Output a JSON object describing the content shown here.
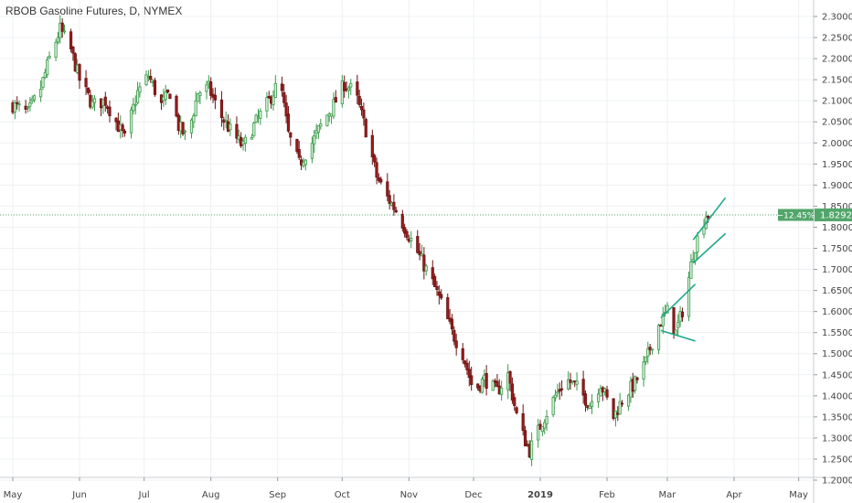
{
  "header": {
    "symbol_title": "RBOB Gasoline Futures, D, NYMEX"
  },
  "colors": {
    "up_body": "#d7f0da",
    "up_stroke": "#3a9a4a",
    "down_body": "#9b1c1c",
    "down_stroke": "#6b1212",
    "grid": "#eef0f3",
    "last_price_bg": "#53a66b",
    "trendline": "#1ea88b"
  },
  "chart_data": {
    "type": "candlestick",
    "title": "RBOB Gasoline Futures, D, NYMEX",
    "grid": true,
    "y_scale": "linear",
    "ylim": [
      1.19,
      2.32
    ],
    "y_ticks": [
      "2.3000",
      "2.2500",
      "2.2000",
      "2.1500",
      "2.1000",
      "2.0500",
      "2.0000",
      "1.9500",
      "1.9000",
      "1.8500",
      "1.8000",
      "1.7500",
      "1.7000",
      "1.6500",
      "1.6000",
      "1.5500",
      "1.5000",
      "1.4500",
      "1.4000",
      "1.3500",
      "1.3000",
      "1.2500",
      "1.2000"
    ],
    "x_range": [
      "2018-05-01",
      "2019-05-02"
    ],
    "x_ticks": [
      {
        "label": "May",
        "date": "2018-05-01"
      },
      {
        "label": "Jun",
        "date": "2018-06-01"
      },
      {
        "label": "Jul",
        "date": "2018-07-01"
      },
      {
        "label": "Aug",
        "date": "2018-08-01"
      },
      {
        "label": "Sep",
        "date": "2018-09-01"
      },
      {
        "label": "Oct",
        "date": "2018-10-01"
      },
      {
        "label": "Nov",
        "date": "2018-11-01"
      },
      {
        "label": "Dec",
        "date": "2018-12-01"
      },
      {
        "label": "2019",
        "date": "2019-01-01",
        "bold": true
      },
      {
        "label": "Feb",
        "date": "2019-02-01"
      },
      {
        "label": "Mar",
        "date": "2019-03-01"
      },
      {
        "label": "Apr",
        "date": "2019-04-01"
      },
      {
        "label": "May",
        "date": "2019-05-01"
      }
    ],
    "last_price": {
      "change": "−12.45%",
      "value": "1.8292",
      "price": 1.8292
    },
    "price_path": [
      [
        "2018-05-01",
        2.09
      ],
      [
        "2018-05-08",
        2.07
      ],
      [
        "2018-05-14",
        2.13
      ],
      [
        "2018-05-18",
        2.2
      ],
      [
        "2018-05-23",
        2.27
      ],
      [
        "2018-05-28",
        2.22
      ],
      [
        "2018-06-01",
        2.15
      ],
      [
        "2018-06-07",
        2.09
      ],
      [
        "2018-06-13",
        2.1
      ],
      [
        "2018-06-18",
        2.05
      ],
      [
        "2018-06-22",
        2.01
      ],
      [
        "2018-06-28",
        2.12
      ],
      [
        "2018-07-03",
        2.16
      ],
      [
        "2018-07-09",
        2.09
      ],
      [
        "2018-07-13",
        2.12
      ],
      [
        "2018-07-17",
        2.04
      ],
      [
        "2018-07-21",
        2.01
      ],
      [
        "2018-07-26",
        2.12
      ],
      [
        "2018-07-31",
        2.13
      ],
      [
        "2018-08-05",
        2.07
      ],
      [
        "2018-08-10",
        2.03
      ],
      [
        "2018-08-16",
        1.99
      ],
      [
        "2018-08-22",
        2.05
      ],
      [
        "2018-08-28",
        2.1
      ],
      [
        "2018-09-02",
        2.15
      ],
      [
        "2018-09-06",
        2.02
      ],
      [
        "2018-09-11",
        1.95
      ],
      [
        "2018-09-17",
        2.0
      ],
      [
        "2018-09-22",
        2.05
      ],
      [
        "2018-09-27",
        2.09
      ],
      [
        "2018-10-02",
        2.14
      ],
      [
        "2018-10-07",
        2.12
      ],
      [
        "2018-10-12",
        2.03
      ],
      [
        "2018-10-17",
        1.92
      ],
      [
        "2018-10-22",
        1.87
      ],
      [
        "2018-10-26",
        1.84
      ],
      [
        "2018-10-31",
        1.79
      ],
      [
        "2018-11-06",
        1.73
      ],
      [
        "2018-11-11",
        1.68
      ],
      [
        "2018-11-16",
        1.62
      ],
      [
        "2018-11-21",
        1.55
      ],
      [
        "2018-11-26",
        1.5
      ],
      [
        "2018-12-01",
        1.41
      ],
      [
        "2018-12-06",
        1.44
      ],
      [
        "2018-12-12",
        1.41
      ],
      [
        "2018-12-17",
        1.45
      ],
      [
        "2018-12-22",
        1.33
      ],
      [
        "2018-12-27",
        1.27
      ],
      [
        "2019-01-02",
        1.34
      ],
      [
        "2019-01-08",
        1.4
      ],
      [
        "2019-01-13",
        1.44
      ],
      [
        "2019-01-18",
        1.42
      ],
      [
        "2019-01-24",
        1.38
      ],
      [
        "2019-01-29",
        1.43
      ],
      [
        "2019-02-04",
        1.35
      ],
      [
        "2019-02-09",
        1.4
      ],
      [
        "2019-02-14",
        1.43
      ],
      [
        "2019-02-19",
        1.48
      ],
      [
        "2019-02-24",
        1.56
      ],
      [
        "2019-03-01",
        1.6
      ],
      [
        "2019-03-05",
        1.55
      ],
      [
        "2019-03-09",
        1.62
      ],
      [
        "2019-03-13",
        1.74
      ],
      [
        "2019-03-16",
        1.79
      ],
      [
        "2019-03-19",
        1.83
      ]
    ],
    "trendlines": [
      {
        "start": [
          "2019-02-26",
          1.585
        ],
        "end": [
          "2019-03-14",
          1.665
        ]
      },
      {
        "start": [
          "2019-02-26",
          1.555
        ],
        "end": [
          "2019-03-14",
          1.53
        ]
      },
      {
        "start": [
          "2019-03-13",
          1.77
        ],
        "end": [
          "2019-03-28",
          1.87
        ]
      },
      {
        "start": [
          "2019-03-13",
          1.715
        ],
        "end": [
          "2019-03-28",
          1.785
        ]
      }
    ]
  }
}
